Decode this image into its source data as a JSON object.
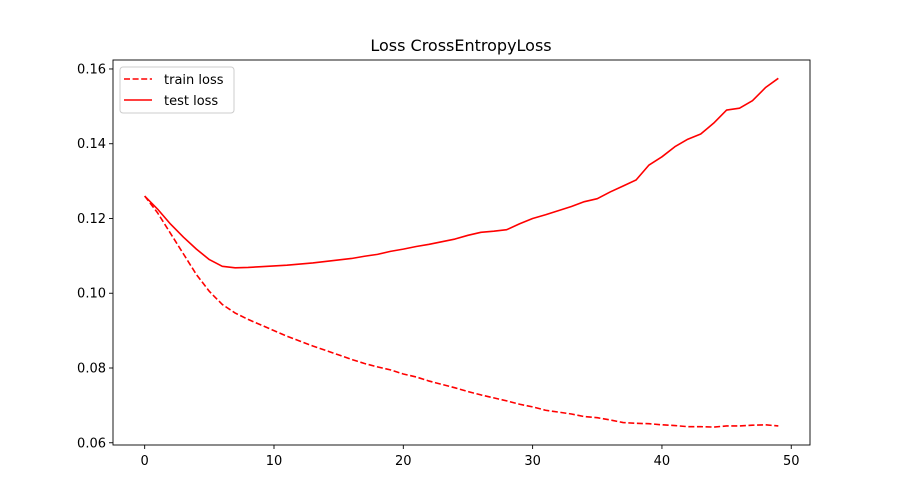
{
  "chart_data": {
    "type": "line",
    "title": "Loss CrossEntropyLoss",
    "xlabel": "",
    "ylabel": "",
    "xlim": [
      -2.45,
      51.45
    ],
    "ylim": [
      0.0594,
      0.1624
    ],
    "x_ticks": [
      0,
      10,
      20,
      30,
      40,
      50
    ],
    "x_tick_labels": [
      "0",
      "10",
      "20",
      "30",
      "40",
      "50"
    ],
    "y_ticks": [
      0.06,
      0.08,
      0.1,
      0.12,
      0.14,
      0.16
    ],
    "y_tick_labels": [
      "0.06",
      "0.08",
      "0.10",
      "0.12",
      "0.14",
      "0.16"
    ],
    "grid": false,
    "legend_position": "upper-left",
    "series": [
      {
        "name": "train loss",
        "style": "dashed",
        "color": "#ff0000",
        "x": [
          0,
          1,
          2,
          3,
          4,
          5,
          6,
          7,
          8,
          9,
          10,
          11,
          12,
          13,
          14,
          15,
          16,
          17,
          18,
          19,
          20,
          21,
          22,
          23,
          24,
          25,
          26,
          27,
          28,
          29,
          30,
          31,
          32,
          33,
          34,
          35,
          36,
          37,
          38,
          39,
          40,
          41,
          42,
          43,
          44,
          45,
          46,
          47,
          48,
          49
        ],
        "values": [
          0.126,
          0.1215,
          0.116,
          0.1105,
          0.105,
          0.1005,
          0.097,
          0.0947,
          0.093,
          0.0915,
          0.09,
          0.0885,
          0.0872,
          0.0859,
          0.0847,
          0.0835,
          0.0823,
          0.0812,
          0.0803,
          0.0795,
          0.0784,
          0.0776,
          0.0765,
          0.0756,
          0.0747,
          0.0737,
          0.0728,
          0.072,
          0.0712,
          0.0703,
          0.0696,
          0.0687,
          0.0682,
          0.0677,
          0.067,
          0.0667,
          0.0661,
          0.0654,
          0.0652,
          0.0651,
          0.0648,
          0.0646,
          0.0643,
          0.0643,
          0.0642,
          0.0645,
          0.0645,
          0.0647,
          0.0648,
          0.0645
        ]
      },
      {
        "name": "test loss",
        "style": "solid",
        "color": "#ff0000",
        "x": [
          0,
          1,
          2,
          3,
          4,
          5,
          6,
          7,
          8,
          9,
          10,
          11,
          12,
          13,
          14,
          15,
          16,
          17,
          18,
          19,
          20,
          21,
          22,
          23,
          24,
          25,
          26,
          27,
          28,
          29,
          30,
          31,
          32,
          33,
          34,
          35,
          36,
          37,
          38,
          39,
          40,
          41,
          42,
          43,
          44,
          45,
          46,
          47,
          48,
          49
        ],
        "values": [
          0.126,
          0.1225,
          0.1185,
          0.115,
          0.1118,
          0.109,
          0.1072,
          0.1068,
          0.1069,
          0.1071,
          0.1073,
          0.1075,
          0.1078,
          0.1081,
          0.1085,
          0.1089,
          0.1093,
          0.1099,
          0.1104,
          0.1112,
          0.1118,
          0.1125,
          0.1131,
          0.1138,
          0.1145,
          0.1155,
          0.1163,
          0.1166,
          0.117,
          0.1186,
          0.12,
          0.121,
          0.1221,
          0.1232,
          0.1245,
          0.1253,
          0.1271,
          0.1287,
          0.1303,
          0.1343,
          0.1365,
          0.1392,
          0.1412,
          0.1426,
          0.1455,
          0.149,
          0.1495,
          0.1515,
          0.155,
          0.1575
        ]
      }
    ]
  }
}
